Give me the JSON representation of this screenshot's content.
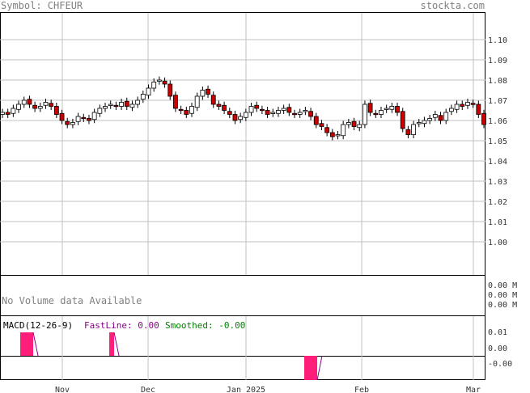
{
  "header": {
    "symbol_label": "Symbol: CHFEUR",
    "site": "stockta.com"
  },
  "volume_panel": {
    "message": "No Volume data Available",
    "ticks": [
      "0.00 M",
      "0.00 M",
      "0.00 M"
    ]
  },
  "macd_panel": {
    "title": "MACD(12-26-9)",
    "fast_label": "FastLine: 0.00",
    "smoothed_label": "Smoothed: -0.00",
    "ticks": [
      "0.01",
      "0.00",
      "-0.00"
    ]
  },
  "colors": {
    "up_candle": "#ffffff",
    "down_candle": "#cc0000",
    "grid": "#c0c0c0",
    "macd_hist": "#ff1f7a",
    "fast_line": "#8b008b",
    "smoothed": "#008000"
  },
  "chart_data": {
    "type": "candlestick",
    "x_tick_labels": [
      "Nov",
      "Dec",
      "Jan 2025",
      "Feb",
      "Mar"
    ],
    "y_tick_labels": [
      "1.10",
      "1.09",
      "1.08",
      "1.07",
      "1.06",
      "1.05",
      "1.04",
      "1.03",
      "1.02",
      "1.01",
      "1.00"
    ],
    "ylim": [
      0.99,
      1.115
    ],
    "grid": true,
    "closes": [
      1.064,
      1.063,
      1.066,
      1.068,
      1.07,
      1.068,
      1.066,
      1.067,
      1.069,
      1.067,
      1.063,
      1.06,
      1.058,
      1.059,
      1.062,
      1.061,
      1.06,
      1.064,
      1.066,
      1.067,
      1.068,
      1.067,
      1.069,
      1.067,
      1.068,
      1.07,
      1.073,
      1.076,
      1.079,
      1.08,
      1.078,
      1.072,
      1.066,
      1.065,
      1.063,
      1.067,
      1.072,
      1.075,
      1.073,
      1.068,
      1.067,
      1.065,
      1.063,
      1.06,
      1.062,
      1.064,
      1.067,
      1.066,
      1.065,
      1.063,
      1.064,
      1.065,
      1.066,
      1.064,
      1.063,
      1.064,
      1.065,
      1.062,
      1.058,
      1.057,
      1.054,
      1.052,
      1.053,
      1.058,
      1.059,
      1.057,
      1.058,
      1.068,
      1.064,
      1.063,
      1.065,
      1.066,
      1.067,
      1.064,
      1.056,
      1.053,
      1.058,
      1.059,
      1.06,
      1.061,
      1.063,
      1.06,
      1.064,
      1.066,
      1.068,
      1.067,
      1.069,
      1.068,
      1.063,
      1.058
    ],
    "markers": {
      "x_tick_positions": "month starts"
    },
    "macd": {
      "fast": 0.0,
      "smoothed": -0.0,
      "histogram_events": [
        "late Oct",
        "late Nov",
        "late Jan"
      ]
    }
  }
}
